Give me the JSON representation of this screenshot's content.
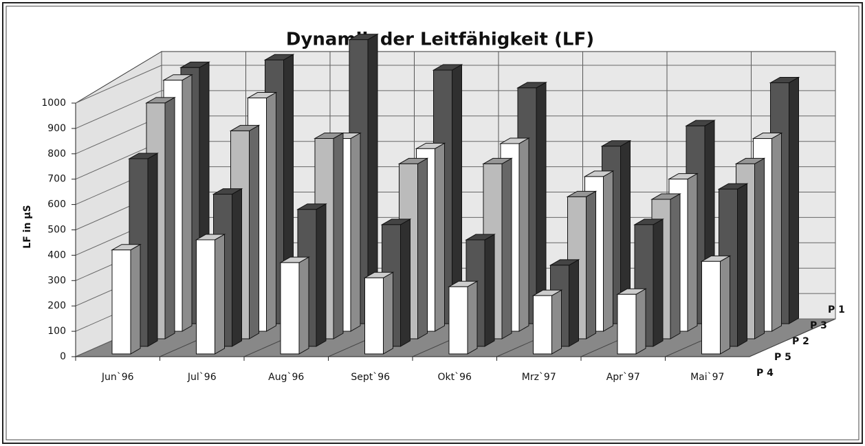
{
  "chart_data": {
    "type": "bar3d",
    "title": "Dynamik der Leitfähigkeit (LF)",
    "y_label": "LF in µS",
    "categories": [
      "Jun`96",
      "Jul`96",
      "Aug`96",
      "Sept`96",
      "Okt`96",
      "Mrz`97",
      "Apr`97",
      "Mai`97"
    ],
    "series": [
      {
        "name": "P 4",
        "color": "#ffffff",
        "values": [
          410,
          450,
          360,
          300,
          265,
          230,
          235,
          365
        ]
      },
      {
        "name": "P 5",
        "color": "#555555",
        "values": [
          740,
          600,
          540,
          480,
          420,
          320,
          480,
          620
        ]
      },
      {
        "name": "P 2",
        "color": "#bbbbbb",
        "values": [
          930,
          820,
          790,
          690,
          690,
          560,
          550,
          690
        ]
      },
      {
        "name": "P 3",
        "color": "#ffffff",
        "values": [
          990,
          920,
          760,
          720,
          740,
          610,
          600,
          760
        ]
      },
      {
        "name": "P 1",
        "color": "#555555",
        "values": [
          1010,
          1040,
          1120,
          1000,
          930,
          700,
          780,
          950
        ]
      }
    ],
    "ylim": [
      0,
      1000
    ],
    "yticks": [
      0,
      100,
      200,
      300,
      400,
      500,
      600,
      700,
      800,
      900,
      1000
    ],
    "grid": true
  }
}
